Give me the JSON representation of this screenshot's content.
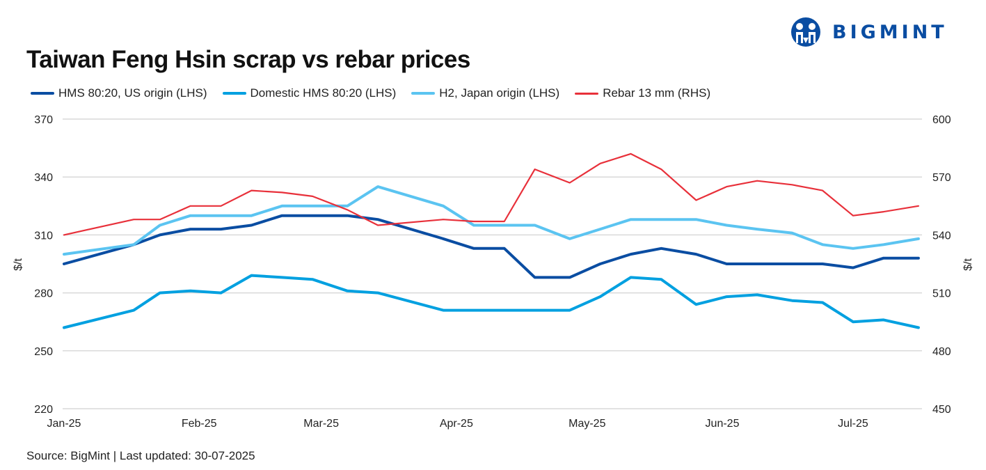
{
  "title": "Taiwan Feng Hsin scrap vs rebar prices",
  "logo": {
    "text": "BIGMINT",
    "color": "#0a4da2"
  },
  "source": "Source: BigMint |  Last updated: 30-07-2025",
  "chart_data": {
    "type": "line",
    "title": "Taiwan Feng Hsin scrap vs rebar prices",
    "legend_position": "top-left",
    "grid": true,
    "x": [
      "2025-01-01",
      "2025-01-17",
      "2025-01-23",
      "2025-01-30",
      "2025-02-06",
      "2025-02-13",
      "2025-02-20",
      "2025-02-27",
      "2025-03-07",
      "2025-03-14",
      "2025-03-29",
      "2025-04-05",
      "2025-04-12",
      "2025-04-19",
      "2025-04-27",
      "2025-05-04",
      "2025-05-11",
      "2025-05-18",
      "2025-05-26",
      "2025-06-02",
      "2025-06-09",
      "2025-06-17",
      "2025-06-24",
      "2025-07-01",
      "2025-07-08",
      "2025-07-16"
    ],
    "x_ticks": [
      "Jan-25",
      "Feb-25",
      "Mar-25",
      "Apr-25",
      "May-25",
      "Jun-25",
      "Jul-25"
    ],
    "x_tick_dates": [
      "2025-01-01",
      "2025-02-01",
      "2025-03-01",
      "2025-04-01",
      "2025-05-01",
      "2025-06-01",
      "2025-07-01"
    ],
    "ylabel_left": "$/t",
    "ylabel_right": "$/t",
    "ylim_left": [
      220,
      370
    ],
    "ylim_right": [
      450,
      600
    ],
    "y_ticks_left": [
      220,
      250,
      280,
      310,
      340,
      370
    ],
    "y_ticks_right": [
      450,
      480,
      510,
      540,
      570,
      600
    ],
    "series": [
      {
        "name": "HMS 80:20, US origin (LHS)",
        "axis": "left",
        "color": "#0a4da2",
        "width": 4,
        "values": [
          295,
          305,
          310,
          313,
          313,
          315,
          320,
          320,
          320,
          318,
          308,
          303,
          303,
          288,
          288,
          295,
          300,
          303,
          300,
          295,
          295,
          295,
          295,
          293,
          298,
          298
        ]
      },
      {
        "name": "Domestic HMS 80:20 (LHS)",
        "axis": "left",
        "color": "#00a0e0",
        "width": 4,
        "values": [
          262,
          271,
          280,
          281,
          280,
          289,
          288,
          287,
          281,
          280,
          271,
          271,
          271,
          271,
          271,
          278,
          288,
          287,
          274,
          278,
          279,
          276,
          275,
          265,
          266,
          262
        ]
      },
      {
        "name": "H2, Japan origin (LHS)",
        "axis": "left",
        "color": "#5bc4f1",
        "width": 4,
        "values": [
          300,
          305,
          315,
          320,
          320,
          320,
          325,
          325,
          325,
          335,
          325,
          315,
          315,
          315,
          308,
          313,
          318,
          318,
          318,
          315,
          313,
          311,
          305,
          303,
          305,
          308
        ]
      },
      {
        "name": "Rebar 13 mm (RHS)",
        "axis": "right",
        "color": "#e8303a",
        "width": 2.2,
        "values": [
          540,
          548,
          548,
          555,
          555,
          563,
          562,
          560,
          553,
          545,
          548,
          547,
          547,
          574,
          567,
          577,
          582,
          574,
          558,
          565,
          568,
          566,
          563,
          550,
          552,
          555
        ]
      }
    ]
  }
}
